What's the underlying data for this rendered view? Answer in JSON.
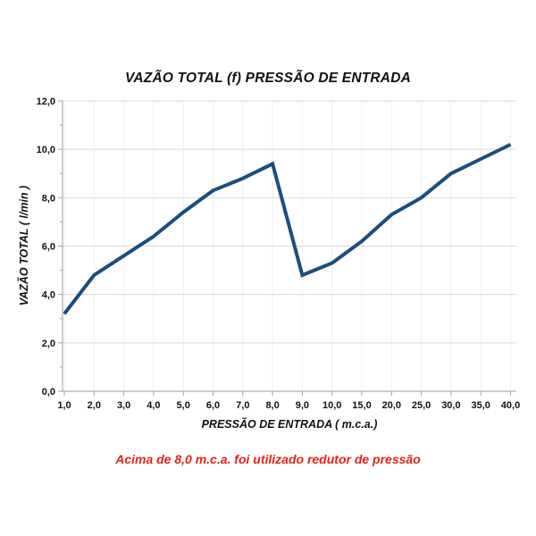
{
  "figure": {
    "title": "VAZÃO TOTAL (f) PRESSÃO DE ENTRADA",
    "note": "Acima de 8,0 m.c.a. foi utilizado redutor de pressão"
  },
  "chart_data": {
    "type": "line",
    "title": "VAZÃO TOTAL (f) PRESSÃO DE ENTRADA",
    "xlabel": "PRESSÃO DE ENTRADA ( m.c.a.)",
    "ylabel": "VAZÃO TOTAL ( l/min )",
    "categories": [
      "1,0",
      "2,0",
      "3,0",
      "4,0",
      "5,0",
      "6,0",
      "7,0",
      "8,0",
      "9,0",
      "10,0",
      "15,0",
      "20,0",
      "25,0",
      "30,0",
      "35,0",
      "40,0"
    ],
    "x_values": [
      1.0,
      2.0,
      3.0,
      4.0,
      5.0,
      6.0,
      7.0,
      8.0,
      9.0,
      10.0,
      15.0,
      20.0,
      25.0,
      30.0,
      35.0,
      40.0
    ],
    "values": [
      3.2,
      4.8,
      5.6,
      6.4,
      7.4,
      8.3,
      8.8,
      9.4,
      4.8,
      5.3,
      6.2,
      7.3,
      8.0,
      9.0,
      9.6,
      10.2
    ],
    "series": [
      {
        "name": "Vazão total",
        "values": [
          3.2,
          4.8,
          5.6,
          6.4,
          7.4,
          8.3,
          8.8,
          9.4,
          4.8,
          5.3,
          6.2,
          7.3,
          8.0,
          9.0,
          9.6,
          10.2
        ]
      }
    ],
    "ylim": [
      0,
      12
    ],
    "y_tick_step": 2,
    "y_tick_labels": [
      "0,0",
      "2,0",
      "4,0",
      "6,0",
      "8,0",
      "10,0",
      "12,0"
    ],
    "grid": "horizontal-major",
    "legend": "none",
    "x_axis_note": "categorical spacing (equal steps, not to numeric scale)",
    "annotation": "Acima de 8,0 m.c.a. foi utilizado redutor de pressão",
    "colors": {
      "line": "#1a4e7e",
      "grid_major": "#d9d9d9",
      "grid_minor": "#f0f0f0",
      "axis": "#9e9e9e",
      "text": "#111111",
      "note": "#e32119"
    }
  }
}
